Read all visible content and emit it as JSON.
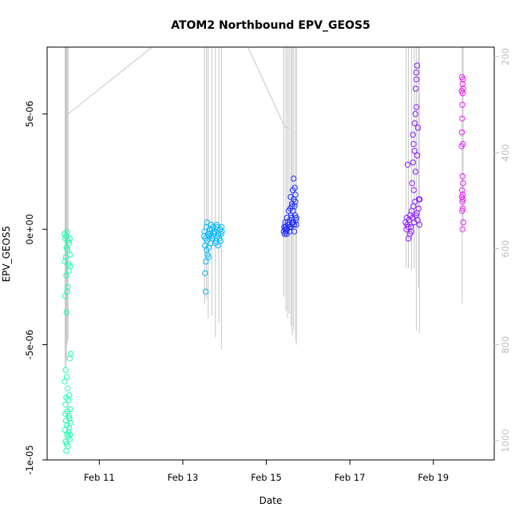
{
  "chart_data": {
    "type": "scatter",
    "title": "ATOM2 Northbound EPV_GEOS5",
    "xlabel": "Date",
    "ylabel": "EPV_GEOS5",
    "x_axis": {
      "type": "date",
      "range": [
        "2014-02-09T18:00",
        "2014-02-20T11:00"
      ],
      "ticks": [
        "2014-02-11",
        "2014-02-13",
        "2014-02-15",
        "2014-02-17",
        "2014-02-19"
      ],
      "tick_labels": [
        "Feb 11",
        "Feb 13",
        "Feb 15",
        "Feb 17",
        "Feb 19"
      ]
    },
    "y_axis": {
      "range": [
        -1e-05,
        7.9e-06
      ],
      "ticks": [
        -1e-05,
        -5e-06,
        0,
        5e-06
      ],
      "tick_labels": [
        "-1e-05",
        "-5e-06",
        "0e+00",
        "5e-06"
      ]
    },
    "y2_axis": {
      "description": "pressure (hPa), reversed",
      "range": [
        1040,
        180
      ],
      "ticks": [
        200,
        400,
        600,
        800,
        1000
      ],
      "tick_labels": [
        "200",
        "400",
        "600",
        "800",
        "1000"
      ],
      "color": "#bdbdbd"
    },
    "grid": false,
    "legend": "none",
    "pressure_profile_color": "#c8c8c8",
    "profile_groups": [
      {
        "date": "2014-02-10",
        "color": "#19ffaa",
        "profile_x": [
          "2014-02-10T04:19",
          "2014-02-10T04:43",
          "2014-02-10T05:05",
          "2014-02-10T05:17",
          "2014-02-10T05:36",
          "2014-02-10T06:00"
        ],
        "profile_bottom": [
          850,
          830,
          845,
          795,
          800,
          790
        ]
      },
      {
        "date": "2014-02-13",
        "color": "#00b9ff",
        "profile_x": [
          "2014-02-13T12:29",
          "2014-02-13T13:41",
          "2014-02-13T14:36",
          "2014-02-13T16:41",
          "2014-02-13T18:43",
          "2014-02-13T20:41",
          "2014-02-13T22:12"
        ],
        "profile_bottom": [
          715,
          705,
          745,
          740,
          785,
          755,
          810
        ]
      },
      {
        "date": "2014-02-15",
        "color": "#1e2cff",
        "profile_x": [
          "2014-02-15T10:05",
          "2014-02-15T11:17",
          "2014-02-15T12:12",
          "2014-02-15T13:07",
          "2014-02-15T14:14",
          "2014-02-15T14:53",
          "2014-02-15T15:43",
          "2014-02-15T16:55",
          "2014-02-15T17:14"
        ],
        "profile_bottom": [
          700,
          730,
          745,
          735,
          760,
          780,
          770,
          790,
          800
        ]
      },
      {
        "date": "2014-02-18",
        "color": "#8a1cff",
        "profile_x": [
          "2014-02-18T08:24",
          "2014-02-18T09:41",
          "2014-02-18T11:31",
          "2014-02-18T13:02",
          "2014-02-18T14:12",
          "2014-02-18T15:24",
          "2014-02-18T16:00"
        ],
        "profile_bottom": [
          640,
          640,
          645,
          640,
          770,
          680,
          775
        ]
      },
      {
        "date": "2014-02-19",
        "color": "#e81cff",
        "profile_x": [
          "2014-02-19T16:34",
          "2014-02-19T17:06"
        ],
        "profile_bottom": [
          715,
          550
        ]
      }
    ],
    "transit_line": {
      "x": [
        "2014-02-10T04:34",
        "2014-02-10T05:50",
        "2014-02-12T06:22",
        "2014-02-13T10:34",
        "2014-02-14T13:26",
        "2014-02-15T10:29",
        "2014-02-15T13:26"
      ],
      "p": [
        310,
        320,
        180,
        180,
        180,
        345,
        350
      ]
    },
    "series": [
      {
        "color": "#19ffaa",
        "points": [
          [
            "2014-02-10T04:00",
            -2e-07
          ],
          [
            "2014-02-10T05:00",
            -3e-07
          ],
          [
            "2014-02-10T06:00",
            -5e-07
          ],
          [
            "2014-02-10T05:30",
            -1e-07
          ],
          [
            "2014-02-10T04:30",
            -4e-07
          ],
          [
            "2014-02-10T06:30",
            -6e-07
          ],
          [
            "2014-02-10T07:00",
            -4e-07
          ],
          [
            "2014-02-10T05:15",
            -8e-07
          ],
          [
            "2014-02-10T04:45",
            -1.2e-06
          ],
          [
            "2014-02-10T06:10",
            -1.5e-06
          ],
          [
            "2014-02-10T05:40",
            -9e-07
          ],
          [
            "2014-02-10T04:15",
            -1.4e-06
          ],
          [
            "2014-02-10T07:10",
            -1.1e-06
          ],
          [
            "2014-02-10T06:20",
            -1.8e-06
          ],
          [
            "2014-02-10T05:00",
            -2e-06
          ],
          [
            "2014-02-10T07:20",
            -1.6e-06
          ],
          [
            "2014-02-10T05:50",
            -2.5e-06
          ],
          [
            "2014-02-10T04:20",
            -2.9e-06
          ],
          [
            "2014-02-10T05:10",
            -3.6e-06
          ],
          [
            "2014-02-10T05:30",
            -2.7e-06
          ],
          [
            "2014-02-10T07:30",
            -5.4e-06
          ],
          [
            "2014-02-10T07:00",
            -5.6e-06
          ],
          [
            "2014-02-10T04:40",
            -6.1e-06
          ],
          [
            "2014-02-10T05:20",
            -6.4e-06
          ],
          [
            "2014-02-10T04:10",
            -6.6e-06
          ],
          [
            "2014-02-10T05:50",
            -6.9e-06
          ],
          [
            "2014-02-10T06:40",
            -7.2e-06
          ],
          [
            "2014-02-10T05:00",
            -7.3e-06
          ],
          [
            "2014-02-10T04:30",
            -7.6e-06
          ],
          [
            "2014-02-10T06:10",
            -7.4e-06
          ],
          [
            "2014-02-10T07:10",
            -7.8e-06
          ],
          [
            "2014-02-10T05:40",
            -7.9e-06
          ],
          [
            "2014-02-10T06:30",
            -8.1e-06
          ],
          [
            "2014-02-10T04:50",
            -8.3e-06
          ],
          [
            "2014-02-10T05:20",
            -8.5e-06
          ],
          [
            "2014-02-10T06:50",
            -8.2e-06
          ],
          [
            "2014-02-10T04:20",
            -8.7e-06
          ],
          [
            "2014-02-10T05:30",
            -8.9e-06
          ],
          [
            "2014-02-10T06:00",
            -9e-06
          ],
          [
            "2014-02-10T07:20",
            -8.4e-06
          ],
          [
            "2014-02-10T04:40",
            -9.2e-06
          ],
          [
            "2014-02-10T05:10",
            -9.3e-06
          ],
          [
            "2014-02-10T06:20",
            -8.8e-06
          ],
          [
            "2014-02-10T07:00",
            -9.1e-06
          ],
          [
            "2014-02-10T05:50",
            -9.4e-06
          ],
          [
            "2014-02-10T06:40",
            -8.6e-06
          ],
          [
            "2014-02-10T04:30",
            -8e-06
          ],
          [
            "2014-02-10T05:00",
            -9.6e-06
          ],
          [
            "2014-02-10T07:10",
            -8.9e-06
          ]
        ]
      },
      {
        "color": "#00b9ff",
        "points": [
          [
            "2014-02-13T12:30",
            -1e-07
          ],
          [
            "2014-02-13T13:30",
            1e-07
          ],
          [
            "2014-02-13T14:30",
            -2e-07
          ],
          [
            "2014-02-13T15:30",
            0
          ],
          [
            "2014-02-13T16:30",
            -3e-07
          ],
          [
            "2014-02-13T17:30",
            1e-07
          ],
          [
            "2014-02-13T18:30",
            -1e-07
          ],
          [
            "2014-02-13T19:30",
            2e-07
          ],
          [
            "2014-02-13T20:30",
            -2e-07
          ],
          [
            "2014-02-13T21:30",
            0
          ],
          [
            "2014-02-13T22:30",
            -1e-07
          ],
          [
            "2014-02-13T13:00",
            -4e-07
          ],
          [
            "2014-02-13T14:00",
            -5e-07
          ],
          [
            "2014-02-13T15:00",
            -3e-07
          ],
          [
            "2014-02-13T16:00",
            -6e-07
          ],
          [
            "2014-02-13T17:00",
            -4e-07
          ],
          [
            "2014-02-13T18:00",
            -2e-07
          ],
          [
            "2014-02-13T19:00",
            -5e-07
          ],
          [
            "2014-02-13T20:00",
            -3e-07
          ],
          [
            "2014-02-13T21:00",
            -4e-07
          ],
          [
            "2014-02-13T22:00",
            -2e-07
          ],
          [
            "2014-02-13T12:45",
            -7e-07
          ],
          [
            "2014-02-13T13:45",
            -9e-07
          ],
          [
            "2014-02-13T14:45",
            -1.2e-06
          ],
          [
            "2014-02-13T13:15",
            -1.4e-06
          ],
          [
            "2014-02-13T14:15",
            -1.1e-06
          ],
          [
            "2014-02-13T12:50",
            -1.9e-06
          ],
          [
            "2014-02-13T13:10",
            -2.7e-06
          ],
          [
            "2014-02-13T13:55",
            3e-07
          ],
          [
            "2014-02-13T16:15",
            2e-07
          ],
          [
            "2014-02-13T18:45",
            -6e-07
          ],
          [
            "2014-02-13T20:15",
            -7e-07
          ],
          [
            "2014-02-13T21:45",
            -5e-07
          ],
          [
            "2014-02-13T19:45",
            1e-07
          ],
          [
            "2014-02-13T17:45",
            -1e-07
          ],
          [
            "2014-02-13T15:45",
            -2e-07
          ],
          [
            "2014-02-13T12:15",
            -3e-07
          ],
          [
            "2014-02-13T22:15",
            1e-07
          ],
          [
            "2014-02-13T16:45",
            0
          ],
          [
            "2014-02-13T14:50",
            -8e-07
          ]
        ]
      },
      {
        "color": "#1e2cff",
        "points": [
          [
            "2014-02-15T10:00",
            -1e-07
          ],
          [
            "2014-02-15T11:00",
            1e-07
          ],
          [
            "2014-02-15T12:00",
            0
          ],
          [
            "2014-02-15T13:00",
            2e-07
          ],
          [
            "2014-02-15T14:00",
            1e-07
          ],
          [
            "2014-02-15T15:00",
            3e-07
          ],
          [
            "2014-02-15T16:00",
            2e-07
          ],
          [
            "2014-02-15T17:00",
            4e-07
          ],
          [
            "2014-02-15T10:30",
            -2e-07
          ],
          [
            "2014-02-15T11:30",
            0
          ],
          [
            "2014-02-15T12:30",
            2e-07
          ],
          [
            "2014-02-15T13:30",
            4e-07
          ],
          [
            "2014-02-15T14:30",
            5e-07
          ],
          [
            "2014-02-15T15:30",
            3e-07
          ],
          [
            "2014-02-15T16:30",
            6e-07
          ],
          [
            "2014-02-15T10:15",
            1e-07
          ],
          [
            "2014-02-15T11:15",
            -1e-07
          ],
          [
            "2014-02-15T12:15",
            3e-07
          ],
          [
            "2014-02-15T13:15",
            1e-07
          ],
          [
            "2014-02-15T14:15",
            6e-07
          ],
          [
            "2014-02-15T15:15",
            8e-07
          ],
          [
            "2014-02-15T16:15",
            1e-06
          ],
          [
            "2014-02-15T17:15",
            5e-07
          ],
          [
            "2014-02-15T13:45",
            9e-07
          ],
          [
            "2014-02-15T14:45",
            1.1e-06
          ],
          [
            "2014-02-15T15:45",
            1.3e-06
          ],
          [
            "2014-02-15T16:45",
            1.5e-06
          ],
          [
            "2014-02-15T14:00",
            1.4e-06
          ],
          [
            "2014-02-15T15:10",
            1.7e-06
          ],
          [
            "2014-02-15T16:20",
            1.8e-06
          ],
          [
            "2014-02-15T16:40",
            1.2e-06
          ],
          [
            "2014-02-15T15:40",
            2.2e-06
          ],
          [
            "2014-02-15T14:50",
            1e-06
          ],
          [
            "2014-02-15T12:50",
            8e-07
          ],
          [
            "2014-02-15T11:50",
            5e-07
          ],
          [
            "2014-02-15T10:50",
            3e-07
          ],
          [
            "2014-02-15T17:10",
            2e-07
          ],
          [
            "2014-02-15T16:05",
            -1e-07
          ],
          [
            "2014-02-15T13:20",
            -1e-07
          ],
          [
            "2014-02-15T11:40",
            -2e-07
          ],
          [
            "2014-02-15T10:40",
            0
          ]
        ]
      },
      {
        "color": "#8a1cff",
        "points": [
          [
            "2014-02-18T08:00",
            3e-07
          ],
          [
            "2014-02-18T09:00",
            2e-07
          ],
          [
            "2014-02-18T10:00",
            4e-07
          ],
          [
            "2014-02-18T11:00",
            1e-07
          ],
          [
            "2014-02-18T12:00",
            5e-07
          ],
          [
            "2014-02-18T13:00",
            3e-07
          ],
          [
            "2014-02-18T14:00",
            6e-07
          ],
          [
            "2014-02-18T15:00",
            4e-07
          ],
          [
            "2014-02-18T16:00",
            2e-07
          ],
          [
            "2014-02-18T08:30",
            0
          ],
          [
            "2014-02-18T09:30",
            1e-07
          ],
          [
            "2014-02-18T10:30",
            -2e-07
          ],
          [
            "2014-02-18T11:30",
            8e-07
          ],
          [
            "2014-02-18T12:30",
            1e-06
          ],
          [
            "2014-02-18T13:30",
            1.2e-06
          ],
          [
            "2014-02-18T14:30",
            7e-07
          ],
          [
            "2014-02-18T15:30",
            9e-07
          ],
          [
            "2014-02-18T09:15",
            2.8e-06
          ],
          [
            "2014-02-18T11:45",
            2e-06
          ],
          [
            "2014-02-18T12:45",
            1.7e-06
          ],
          [
            "2014-02-18T13:45",
            2.5e-06
          ],
          [
            "2014-02-18T14:45",
            3.2e-06
          ],
          [
            "2014-02-18T12:15",
            4.1e-06
          ],
          [
            "2014-02-18T13:15",
            4.6e-06
          ],
          [
            "2014-02-18T14:15",
            5.3e-06
          ],
          [
            "2014-02-18T13:50",
            6.1e-06
          ],
          [
            "2014-02-18T14:20",
            6.5e-06
          ],
          [
            "2014-02-18T14:40",
            7.1e-06
          ],
          [
            "2014-02-18T13:40",
            5e-06
          ],
          [
            "2014-02-18T12:40",
            3.7e-06
          ],
          [
            "2014-02-18T15:10",
            4.4e-06
          ],
          [
            "2014-02-18T11:20",
            -1e-07
          ],
          [
            "2014-02-18T15:40",
            1.3e-06
          ],
          [
            "2014-02-18T10:40",
            6e-07
          ],
          [
            "2014-02-18T09:40",
            -4e-07
          ],
          [
            "2014-02-18T08:40",
            5e-07
          ],
          [
            "2014-02-18T16:10",
            1.3e-06
          ],
          [
            "2014-02-18T12:20",
            2.9e-06
          ],
          [
            "2014-02-18T14:10",
            6.8e-06
          ],
          [
            "2014-02-18T13:10",
            3.4e-06
          ]
        ]
      },
      {
        "color": "#e81cff",
        "points": [
          [
            "2014-02-19T16:30",
            6.6e-06
          ],
          [
            "2014-02-19T17:00",
            6.5e-06
          ],
          [
            "2014-02-19T16:45",
            6.3e-06
          ],
          [
            "2014-02-19T17:10",
            6.1e-06
          ],
          [
            "2014-02-19T16:20",
            6e-06
          ],
          [
            "2014-02-19T16:50",
            5.9e-06
          ],
          [
            "2014-02-19T16:40",
            5.4e-06
          ],
          [
            "2014-02-19T16:35",
            4.8e-06
          ],
          [
            "2014-02-19T16:25",
            4.2e-06
          ],
          [
            "2014-02-19T16:55",
            3.7e-06
          ],
          [
            "2014-02-19T16:15",
            3.6e-06
          ],
          [
            "2014-02-19T16:45",
            2.3e-06
          ],
          [
            "2014-02-19T17:05",
            2e-06
          ],
          [
            "2014-02-19T16:30",
            1.7e-06
          ],
          [
            "2014-02-19T16:50",
            1.5e-06
          ],
          [
            "2014-02-19T16:20",
            1.4e-06
          ],
          [
            "2014-02-19T17:00",
            1.3e-06
          ],
          [
            "2014-02-19T16:40",
            1.2e-06
          ],
          [
            "2014-02-19T16:55",
            9e-07
          ],
          [
            "2014-02-19T16:35",
            8e-07
          ],
          [
            "2014-02-19T17:10",
            3e-07
          ],
          [
            "2014-02-19T16:45",
            0
          ]
        ]
      }
    ]
  }
}
